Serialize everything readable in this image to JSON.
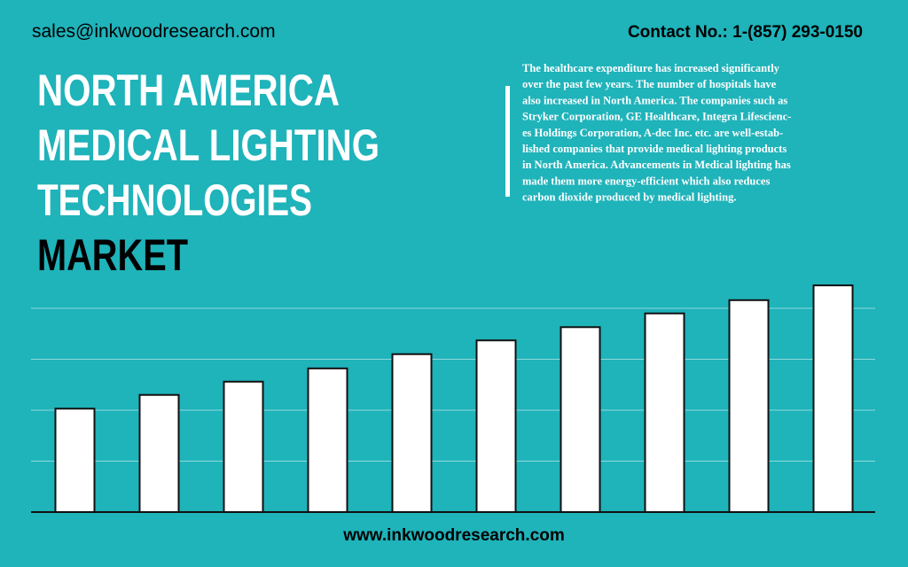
{
  "header": {
    "email": "sales@inkwoodresearch.com",
    "contact": "Contact No.: 1-(857) 293-0150",
    "title_lines": [
      "NORTH AMERICA",
      "MEDICAL LIGHTING",
      "TECHNOLOGIES",
      "MARKET"
    ],
    "description_lines": [
      "The healthcare expenditure has increased significantly",
      "over the past few years. The number of hospitals have",
      "also increased in North America. The companies such as",
      "Stryker Corporation, GE Healthcare, Integra Lifescienc-",
      "es Holdings Corporation, A-dec Inc. etc. are well-estab-",
      "lished companies that provide medical lighting products",
      "in North America. Advancements in Medical lighting has",
      "made them more energy-efficient which also reduces",
      "carbon dioxide produced by medical lighting."
    ]
  },
  "footer": {
    "url": "www.inkwoodresearch.com"
  },
  "chart_data": {
    "type": "bar",
    "categories": [
      null,
      null,
      null,
      null,
      null,
      null,
      null,
      null,
      null,
      null
    ],
    "values": [
      2.03,
      2.3,
      2.56,
      2.82,
      3.1,
      3.37,
      3.63,
      3.9,
      4.16,
      4.45
    ],
    "color": "#ffffff",
    "ylim": [
      0,
      4.5
    ],
    "yticks": [
      0,
      1,
      2,
      3,
      4
    ],
    "grid": true
  }
}
